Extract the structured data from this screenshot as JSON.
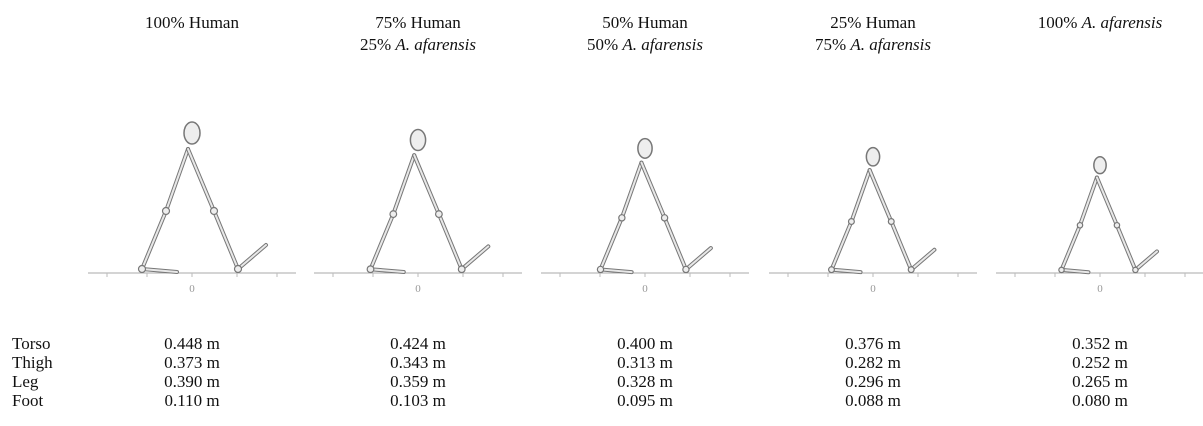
{
  "columns": [
    {
      "title_lines": [
        [
          {
            "text": "100% Human"
          }
        ]
      ],
      "origin_label": "0"
    },
    {
      "title_lines": [
        [
          {
            "text": "75% Human"
          }
        ],
        [
          {
            "text": "25% "
          },
          {
            "text": "A. afarensis",
            "italic": true
          }
        ]
      ],
      "origin_label": "0"
    },
    {
      "title_lines": [
        [
          {
            "text": "50% Human"
          }
        ],
        [
          {
            "text": "50% "
          },
          {
            "text": "A. afarensis",
            "italic": true
          }
        ]
      ],
      "origin_label": "0"
    },
    {
      "title_lines": [
        [
          {
            "text": "25% Human"
          }
        ],
        [
          {
            "text": "75% "
          },
          {
            "text": "A. afarensis",
            "italic": true
          }
        ]
      ],
      "origin_label": "0"
    },
    {
      "title_lines": [
        [
          {
            "text": "100% "
          },
          {
            "text": "A. afarensis",
            "italic": true
          }
        ]
      ],
      "origin_label": "0"
    }
  ],
  "table": {
    "rows": [
      {
        "label": "Torso",
        "values": [
          "0.448 m",
          "0.424 m",
          "0.400 m",
          "0.376 m",
          "0.352 m"
        ]
      },
      {
        "label": "Thigh",
        "values": [
          "0.373 m",
          "0.343 m",
          "0.313 m",
          "0.282 m",
          "0.252 m"
        ]
      },
      {
        "label": "Leg",
        "values": [
          "0.390 m",
          "0.359 m",
          "0.328 m",
          "0.296 m",
          "0.265 m"
        ]
      },
      {
        "label": "Foot",
        "values": [
          "0.110 m",
          "0.103 m",
          "0.095 m",
          "0.088 m",
          "0.080 m"
        ]
      }
    ]
  }
}
